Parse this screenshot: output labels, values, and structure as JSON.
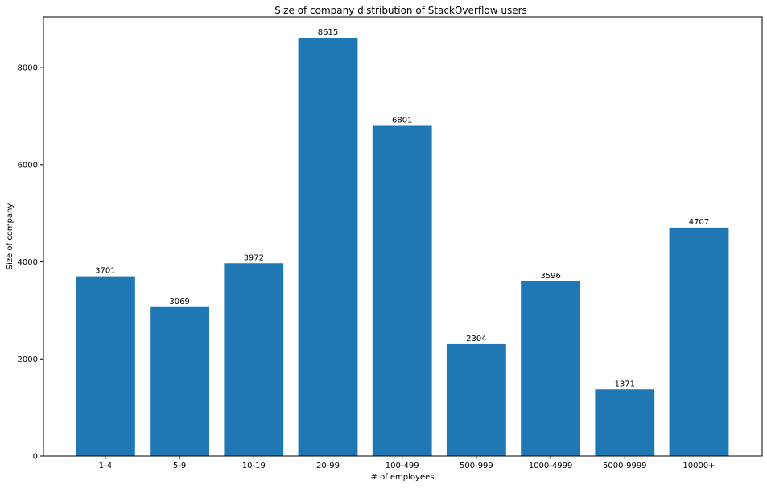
{
  "chart_data": {
    "type": "bar",
    "title": "Size of company distribution of StackOverflow users",
    "xlabel": "# of employees",
    "ylabel": "Size of company",
    "categories": [
      "1-4",
      "5-9",
      "10-19",
      "20-99",
      "100-499",
      "500-999",
      "1000-4999",
      "5000-9999",
      "10000+"
    ],
    "values": [
      3701,
      3069,
      3972,
      8615,
      6801,
      2304,
      3596,
      1371,
      4707
    ],
    "ylim": [
      0,
      9046
    ],
    "yticks": [
      0,
      2000,
      4000,
      6000,
      8000
    ],
    "grid": false,
    "bar_color": "#1f77b4",
    "show_value_labels": true
  }
}
